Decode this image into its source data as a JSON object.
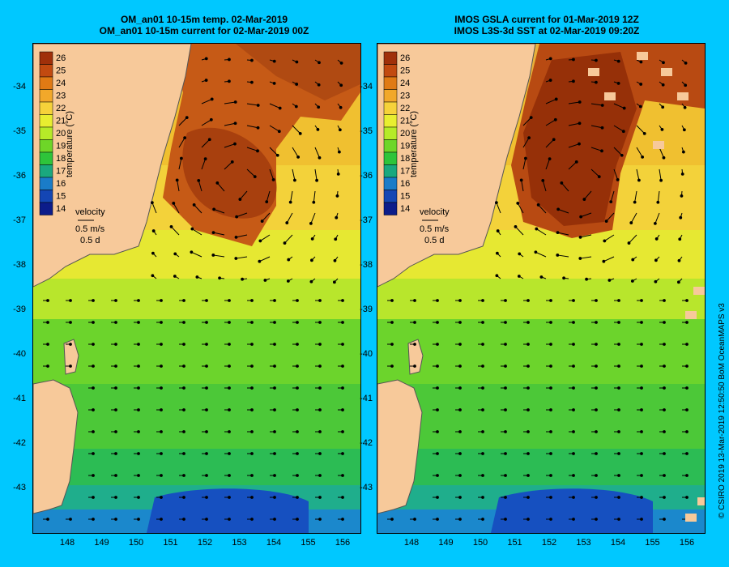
{
  "panels": [
    {
      "title_line1": "OM_an01 10-15m temp. 02-Mar-2019",
      "title_line2": "OM_an01 10-15m current for 02-Mar-2019 00Z",
      "colorbar_label": "temperature (°C)",
      "velocity_label": "velocity",
      "velocity_scale": "0.5 m/s",
      "velocity_time": "0.5 d"
    },
    {
      "title_line1": "IMOS GSLA current for 01-Mar-2019 12Z",
      "title_line2": "IMOS L3S-3d SST at 02-Mar-2019 09:20Z",
      "colorbar_label": "temperature (°C)",
      "velocity_label": "velocity",
      "velocity_scale": "0.5 m/s",
      "velocity_time": "0.5 d"
    }
  ],
  "colorbar_ticks": [
    "26",
    "25",
    "24",
    "23",
    "22",
    "21",
    "20",
    "19",
    "18",
    "17",
    "16",
    "15",
    "14"
  ],
  "lat_ticks": [
    "-34",
    "-35",
    "-36",
    "-37",
    "-38",
    "-39",
    "-40",
    "-41",
    "-42",
    "-43"
  ],
  "lon_ticks": [
    "148",
    "149",
    "150",
    "151",
    "152",
    "153",
    "154",
    "155",
    "156"
  ],
  "credit": "© CSIRO 2019   13-Mar-2019 12:50:50 BoM OceanMAPS v3",
  "colors": {
    "background": "#00c8ff",
    "land": "#f7c99a"
  }
}
